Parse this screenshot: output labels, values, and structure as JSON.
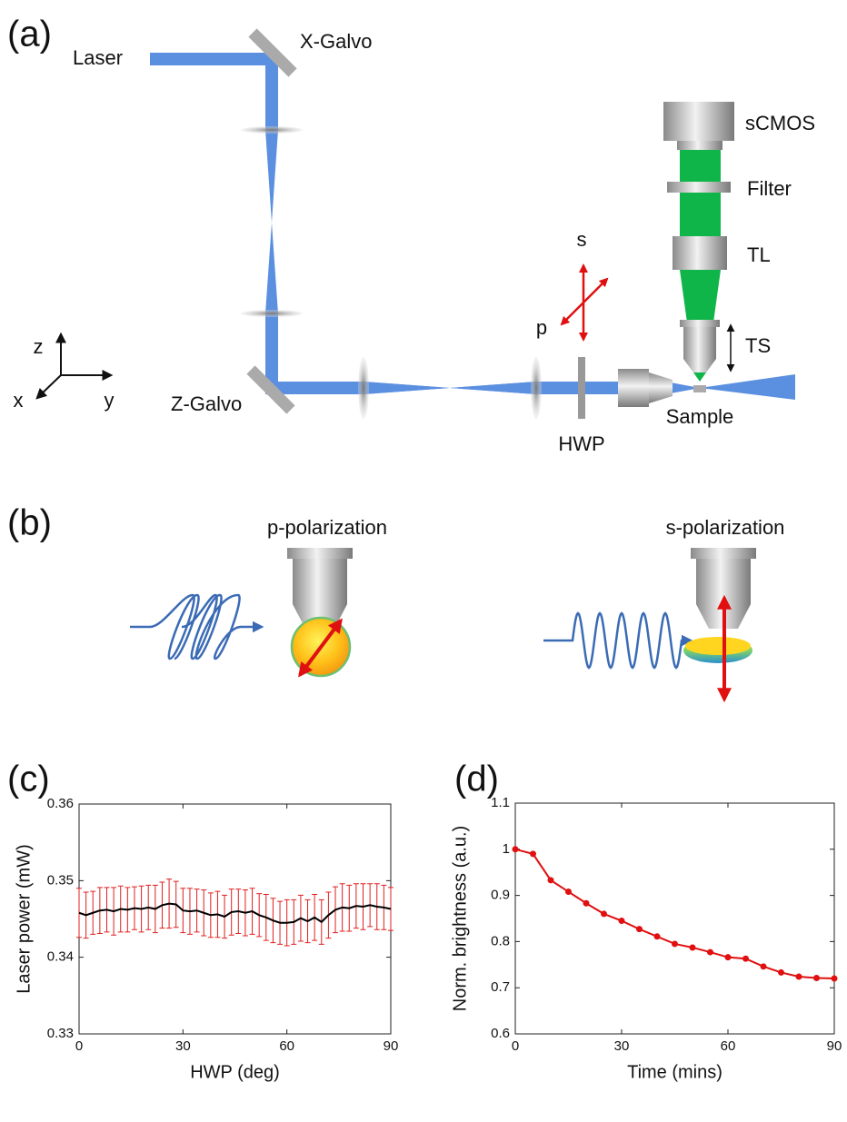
{
  "panel_labels": [
    "(a)",
    "(b)",
    "(c)",
    "(d)"
  ],
  "setup": {
    "laser": "Laser",
    "x_galvo": "X-Galvo",
    "z_galvo": "Z-Galvo",
    "camera": "sCMOS",
    "filter": "Filter",
    "tube_lens": "TL",
    "stage": "TS",
    "hwp": "HWP",
    "sample": "Sample",
    "pol_s": "s",
    "pol_p": "p",
    "axis_z": "z",
    "axis_x": "x",
    "axis_y": "y"
  },
  "polarization": {
    "left": "p-polarization",
    "right": "s-polarization"
  },
  "chart_data": [
    {
      "type": "line",
      "xlabel": "HWP (deg)",
      "ylabel": "Laser power (mW)",
      "x": [
        0,
        2,
        4,
        6,
        8,
        10,
        12,
        14,
        16,
        18,
        20,
        22,
        24,
        26,
        28,
        30,
        32,
        34,
        36,
        38,
        40,
        42,
        44,
        46,
        48,
        50,
        52,
        54,
        56,
        58,
        60,
        62,
        64,
        66,
        68,
        70,
        72,
        74,
        76,
        78,
        80,
        82,
        84,
        86,
        88,
        90
      ],
      "values": [
        0.3458,
        0.3455,
        0.3458,
        0.3461,
        0.3462,
        0.346,
        0.3463,
        0.3462,
        0.3464,
        0.3463,
        0.3465,
        0.3463,
        0.3468,
        0.347,
        0.3469,
        0.3461,
        0.346,
        0.3461,
        0.3458,
        0.3455,
        0.3456,
        0.3453,
        0.3459,
        0.346,
        0.3458,
        0.346,
        0.3455,
        0.3452,
        0.3448,
        0.3445,
        0.3445,
        0.3446,
        0.3451,
        0.3447,
        0.3452,
        0.3446,
        0.3455,
        0.3462,
        0.3465,
        0.3464,
        0.3467,
        0.3466,
        0.3468,
        0.3466,
        0.3465,
        0.3463
      ],
      "errors": [
        0.0032,
        0.003,
        0.0028,
        0.003,
        0.0029,
        0.0031,
        0.003,
        0.0029,
        0.0028,
        0.003,
        0.0029,
        0.0031,
        0.003,
        0.0032,
        0.003,
        0.0029,
        0.003,
        0.0028,
        0.003,
        0.0029,
        0.003,
        0.0028,
        0.003,
        0.0029,
        0.003,
        0.003,
        0.0028,
        0.003,
        0.0029,
        0.0028,
        0.003,
        0.0029,
        0.003,
        0.0028,
        0.003,
        0.0029,
        0.003,
        0.003,
        0.0031,
        0.003,
        0.0029,
        0.003,
        0.0028,
        0.003,
        0.0029,
        0.0028
      ],
      "color": "#000000",
      "error_color": "#e02020",
      "markers": false,
      "xlim": [
        0,
        90
      ],
      "ylim": [
        0.33,
        0.36
      ],
      "xticks": [
        0,
        30,
        60,
        90
      ],
      "yticks": [
        0.33,
        0.34,
        0.35,
        0.36
      ]
    },
    {
      "type": "line",
      "xlabel": "Time (mins)",
      "ylabel": "Norm. brightness (a.u.)",
      "x": [
        0,
        5,
        10,
        15,
        20,
        25,
        30,
        35,
        40,
        45,
        50,
        55,
        60,
        65,
        70,
        75,
        80,
        85,
        90
      ],
      "values": [
        1.0,
        0.99,
        0.933,
        0.908,
        0.883,
        0.86,
        0.845,
        0.827,
        0.811,
        0.795,
        0.787,
        0.777,
        0.766,
        0.763,
        0.746,
        0.733,
        0.724,
        0.721,
        0.72
      ],
      "color": "#e01010",
      "markers": true,
      "xlim": [
        0,
        90
      ],
      "ylim": [
        0.6,
        1.1
      ],
      "xticks": [
        0,
        30,
        60,
        90
      ],
      "yticks": [
        0.6,
        0.7,
        0.8,
        0.9,
        1,
        1.1
      ]
    }
  ]
}
